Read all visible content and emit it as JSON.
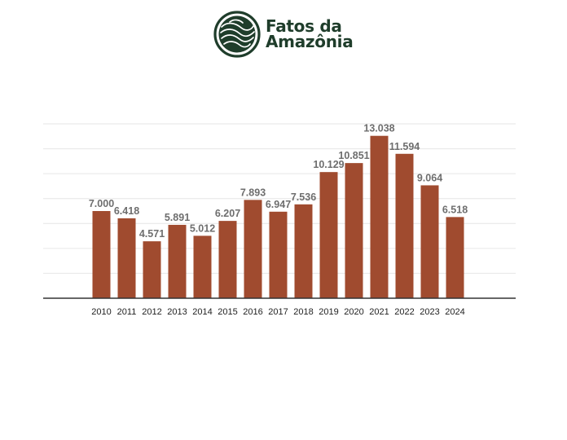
{
  "logo": {
    "line1": "Fatos da",
    "line2": "Amazônia",
    "icon": "topographic-contour-circle-icon",
    "color": "#1f3d2b"
  },
  "chart_data": {
    "type": "bar",
    "categories": [
      "2010",
      "2011",
      "2012",
      "2013",
      "2014",
      "2015",
      "2016",
      "2017",
      "2018",
      "2019",
      "2020",
      "2021",
      "2022",
      "2023",
      "2024"
    ],
    "values": [
      7000,
      6418,
      4571,
      5891,
      5012,
      6207,
      7893,
      6947,
      7536,
      10129,
      10851,
      13038,
      11594,
      9064,
      6518
    ],
    "value_labels": [
      "7.000",
      "6.418",
      "4.571",
      "5.891",
      "5.012",
      "6.207",
      "7.893",
      "6.947",
      "7.536",
      "10.129",
      "10.851",
      "13.038",
      "11.594",
      "9.064",
      "6.518"
    ],
    "title": "",
    "xlabel": "",
    "ylabel": "",
    "ylim": [
      0,
      14000
    ],
    "grid": true,
    "legend": "none",
    "bar_color": "#a04b2f",
    "label_color": "#6e6e6e",
    "gridline_color": "#e6e6e6",
    "axis_color": "#333333"
  }
}
